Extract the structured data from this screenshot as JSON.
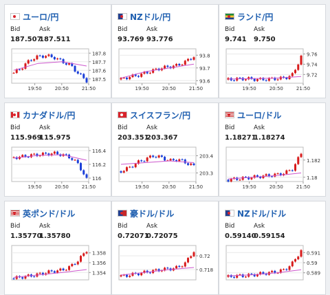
{
  "labels": {
    "bid": "Bid",
    "ask": "Ask"
  },
  "colors": {
    "title": "#1f5fb0",
    "candle_up": "#d81b1b",
    "candle_down": "#1b3fd8",
    "ma_line": "#cc55cc",
    "grid": "#e9e9e9",
    "axis": "#999999"
  },
  "cards": [
    {
      "name": "EURJPY",
      "title": "ユーロ/円",
      "flag": "flag-eu-jp-icon",
      "bid": "187.507",
      "ask": "187.511",
      "chart_data": {
        "type": "candlestick",
        "x_ticks": [
          "19:50",
          "20:50",
          "21:50"
        ],
        "y_ticks": [
          "187.8",
          "187.7",
          "187.6",
          "187.5"
        ],
        "ylim": [
          187.45,
          187.85
        ],
        "trend": [
          187.57,
          187.63,
          187.72,
          187.76,
          187.77,
          187.75,
          187.7,
          187.66,
          187.56,
          187.48
        ],
        "ma": [
          187.6,
          187.68,
          187.7,
          187.65
        ]
      }
    },
    {
      "name": "NZDJPY",
      "title": "NZドル/円",
      "flag": "flag-nz-jp-icon",
      "bid": "93.769",
      "ask": "93.776",
      "chart_data": {
        "type": "candlestick",
        "x_ticks": [
          "19:50",
          "20:50",
          "21:50"
        ],
        "y_ticks": [
          "93.8",
          "93.7",
          "93.6"
        ],
        "ylim": [
          93.58,
          93.85
        ],
        "trend": [
          93.61,
          93.63,
          93.64,
          93.66,
          93.68,
          93.7,
          93.71,
          93.72,
          93.75,
          93.79
        ],
        "ma": [
          93.62,
          93.67,
          93.7,
          93.73
        ]
      }
    },
    {
      "name": "ZARJPY",
      "title": "ランド/円",
      "flag": "flag-za-jp-icon",
      "bid": "9.741",
      "ask": "9.750",
      "chart_data": {
        "type": "candlestick",
        "x_ticks": [
          "19:50",
          "20:50",
          "21:50"
        ],
        "y_ticks": [
          "9.76",
          "9.74",
          "9.72"
        ],
        "ylim": [
          9.703,
          9.77
        ],
        "trend": [
          9.71,
          9.711,
          9.712,
          9.711,
          9.71,
          9.711,
          9.712,
          9.713,
          9.72,
          9.755
        ],
        "ma": [
          9.711,
          9.712,
          9.713,
          9.716
        ]
      }
    },
    {
      "name": "CADJPY",
      "title": "カナダドル/円",
      "flag": "flag-ca-jp-icon",
      "bid": "115.969",
      "ask": "115.975",
      "chart_data": {
        "type": "candlestick",
        "x_ticks": [
          "19:50",
          "20:50",
          "21:50"
        ],
        "y_ticks": [
          "116.4",
          "116.2",
          "116"
        ],
        "ylim": [
          115.95,
          116.45
        ],
        "trend": [
          116.3,
          116.31,
          116.33,
          116.34,
          116.35,
          116.36,
          116.34,
          116.3,
          116.2,
          115.98
        ],
        "ma": [
          116.29,
          116.33,
          116.34,
          116.26
        ]
      }
    },
    {
      "name": "CHFJPY",
      "title": "スイスフラン/円",
      "flag": "flag-ch-jp-icon",
      "bid": "203.351",
      "ask": "203.367",
      "chart_data": {
        "type": "candlestick",
        "x_ticks": [
          "19:50",
          "20:50",
          "21:50"
        ],
        "y_ticks": [
          "203.4",
          "203.3"
        ],
        "ylim": [
          203.25,
          203.45
        ],
        "trend": [
          203.31,
          203.33,
          203.36,
          203.38,
          203.4,
          203.39,
          203.37,
          203.38,
          203.36,
          203.34
        ],
        "ma": [
          203.35,
          203.36,
          203.37,
          203.36
        ]
      }
    },
    {
      "name": "EURUSD",
      "title": "ユーロ/ドル",
      "flag": "flag-eu-us-icon",
      "bid": "1.18271",
      "ask": "1.18274",
      "chart_data": {
        "type": "candlestick",
        "x_ticks": [
          "19:50",
          "20:50",
          "21:50"
        ],
        "y_ticks": [
          "1.182",
          "1.18"
        ],
        "ylim": [
          1.1795,
          1.1835
        ],
        "trend": [
          1.1797,
          1.1798,
          1.1799,
          1.18,
          1.1801,
          1.1802,
          1.1803,
          1.1805,
          1.181,
          1.1828
        ],
        "ma": [
          1.1798,
          1.18,
          1.1802,
          1.1805
        ]
      }
    },
    {
      "name": "GBPUSD",
      "title": "英ポンド/ドル",
      "flag": "flag-gb-us-icon",
      "bid": "1.35770",
      "ask": "1.35780",
      "chart_data": {
        "type": "candlestick",
        "x_ticks": [],
        "y_ticks": [
          "1.358",
          "1.356",
          "1.354"
        ],
        "ylim": [
          1.3525,
          1.3595
        ],
        "trend": [
          1.3528,
          1.3531,
          1.3533,
          1.3536,
          1.354,
          1.3543,
          1.3545,
          1.3552,
          1.3565,
          1.3585
        ],
        "ma": [
          1.353,
          1.3535,
          1.354,
          1.3546
        ]
      }
    },
    {
      "name": "AUDUSD",
      "title": "豪ドル/ドル",
      "flag": "flag-au-us-icon",
      "bid": "0.72071",
      "ask": "0.72075",
      "chart_data": {
        "type": "candlestick",
        "x_ticks": [],
        "y_ticks": [
          "0.72",
          "0.718"
        ],
        "ylim": [
          0.7165,
          0.7215
        ],
        "trend": [
          0.717,
          0.7172,
          0.7174,
          0.7176,
          0.7178,
          0.718,
          0.7181,
          0.7183,
          0.719,
          0.7207
        ],
        "ma": [
          0.7172,
          0.7176,
          0.718,
          0.7183
        ]
      }
    },
    {
      "name": "NZDUSD",
      "title": "NZドル/ドル",
      "flag": "flag-nz-us-icon",
      "bid": "0.59140",
      "ask": "0.59154",
      "chart_data": {
        "type": "candlestick",
        "x_ticks": [],
        "y_ticks": [
          "0.591",
          "0.59",
          "0.589"
        ],
        "ylim": [
          0.5883,
          0.5917
        ],
        "trend": [
          0.5886,
          0.5887,
          0.5887,
          0.5888,
          0.5889,
          0.589,
          0.5891,
          0.5893,
          0.59,
          0.5912
        ],
        "ma": [
          0.5887,
          0.5888,
          0.589,
          0.5893
        ]
      }
    }
  ]
}
